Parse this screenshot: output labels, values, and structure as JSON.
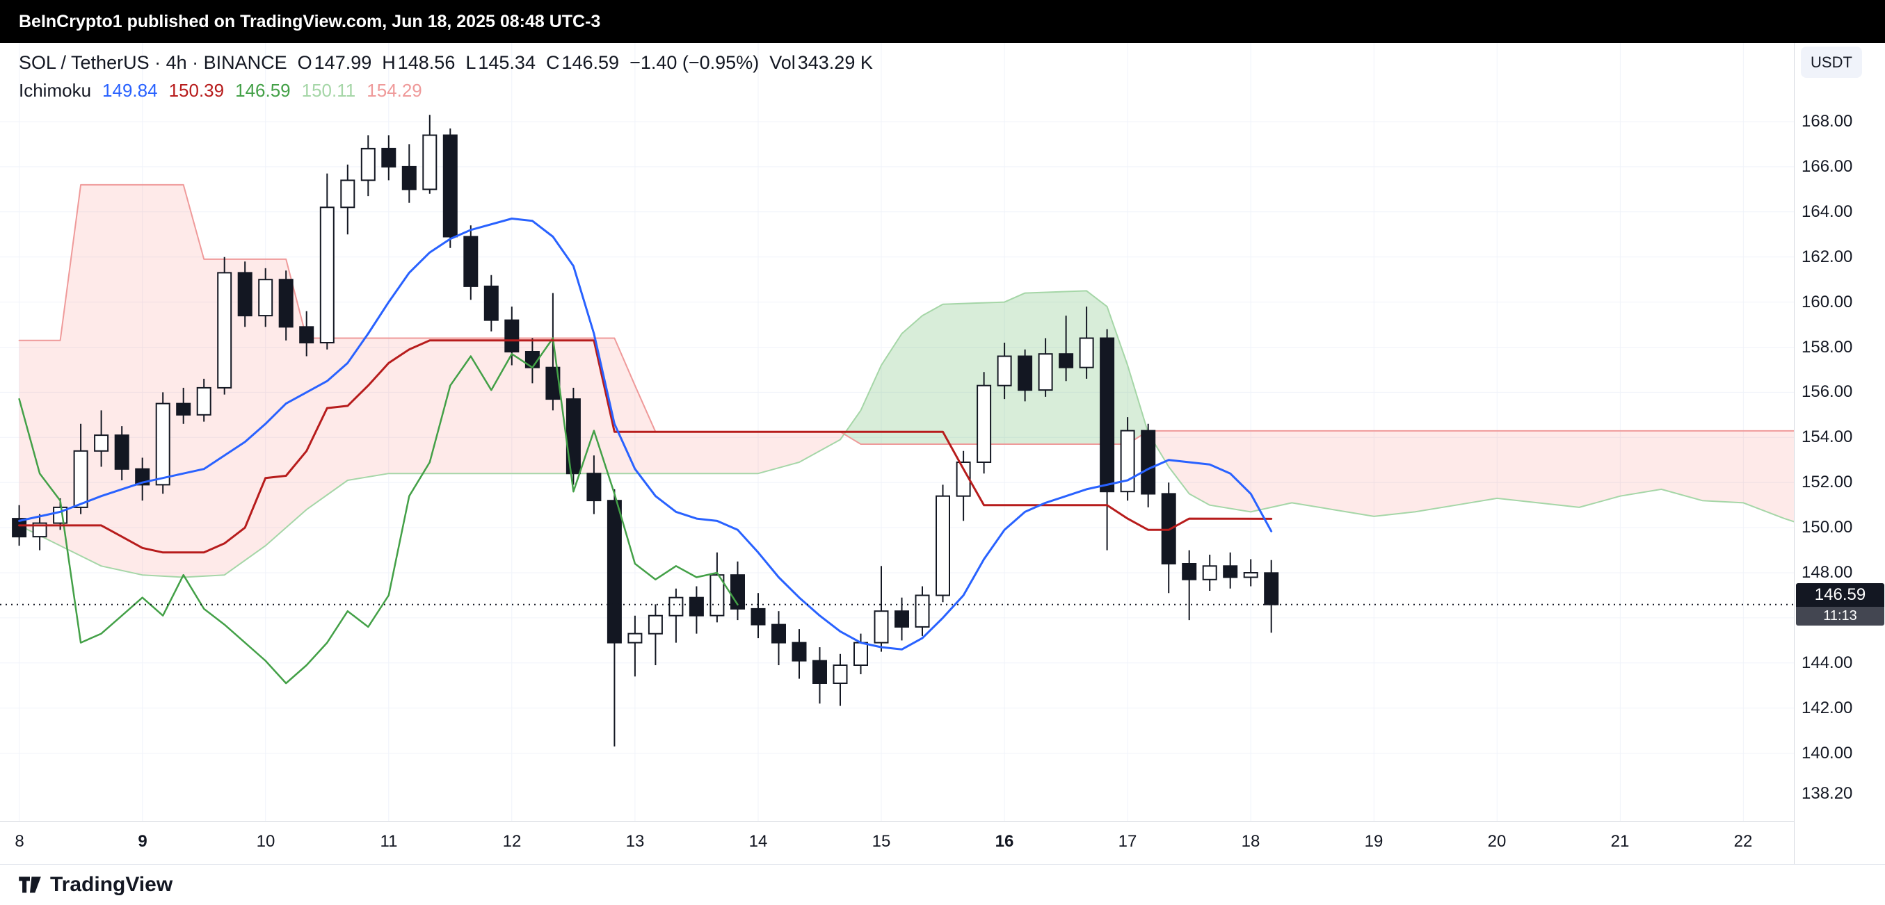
{
  "banner": {
    "text": "BeInCrypto1 published on TradingView.com, Jun 18, 2025 08:48 UTC-3"
  },
  "header": {
    "title": "SOL / TetherUS · 4h · BINANCE",
    "ohlc": [
      {
        "label": "O",
        "value": "147.99"
      },
      {
        "label": "H",
        "value": "148.56"
      },
      {
        "label": "L",
        "value": "145.34"
      },
      {
        "label": "C",
        "value": "146.59"
      }
    ],
    "change": "−1.40 (−0.95%)",
    "volume_label": "Vol",
    "volume_value": "343.29 K",
    "currency_button": "USDT"
  },
  "indicator": {
    "name": "Ichimoku",
    "values": [
      {
        "value": "149.84",
        "color": "#2962FF"
      },
      {
        "value": "150.39",
        "color": "#B71C1C"
      },
      {
        "value": "146.59",
        "color": "#43A047"
      },
      {
        "value": "150.11",
        "color": "#A5D6A7"
      },
      {
        "value": "154.29",
        "color": "#EF9A9A"
      }
    ]
  },
  "price_axis": {
    "labels": [
      {
        "text": "168.00",
        "price": 168.0
      },
      {
        "text": "166.00",
        "price": 166.0
      },
      {
        "text": "164.00",
        "price": 164.0
      },
      {
        "text": "162.00",
        "price": 162.0
      },
      {
        "text": "160.00",
        "price": 160.0
      },
      {
        "text": "158.00",
        "price": 158.0
      },
      {
        "text": "156.00",
        "price": 156.0
      },
      {
        "text": "154.00",
        "price": 154.0
      },
      {
        "text": "152.00",
        "price": 152.0
      },
      {
        "text": "150.00",
        "price": 150.0
      },
      {
        "text": "148.00",
        "price": 148.0
      },
      {
        "text": "144.00",
        "price": 144.0
      },
      {
        "text": "142.00",
        "price": 142.0
      },
      {
        "text": "140.00",
        "price": 140.0
      },
      {
        "text": "138.20",
        "price": 138.2
      }
    ]
  },
  "price_tag": {
    "price": "146.59",
    "countdown": "11:13"
  },
  "time_axis": {
    "labels": [
      {
        "text": "8",
        "i": 0,
        "bold": false
      },
      {
        "text": "9",
        "i": 6,
        "bold": true
      },
      {
        "text": "10",
        "i": 12,
        "bold": false
      },
      {
        "text": "11",
        "i": 18,
        "bold": false
      },
      {
        "text": "12",
        "i": 24,
        "bold": false
      },
      {
        "text": "13",
        "i": 30,
        "bold": false
      },
      {
        "text": "14",
        "i": 36,
        "bold": false
      },
      {
        "text": "15",
        "i": 42,
        "bold": false
      },
      {
        "text": "16",
        "i": 48,
        "bold": true
      },
      {
        "text": "17",
        "i": 54,
        "bold": false
      },
      {
        "text": "18",
        "i": 60,
        "bold": false
      },
      {
        "text": "19",
        "i": 66,
        "bold": false
      },
      {
        "text": "20",
        "i": 72,
        "bold": false
      },
      {
        "text": "21",
        "i": 78,
        "bold": false
      },
      {
        "text": "22",
        "i": 84,
        "bold": false
      }
    ]
  },
  "footer": {
    "brand": "TradingView"
  },
  "chart_data": {
    "type": "candlestick",
    "title": "SOL / TetherUS · 4h · BINANCE",
    "symbol": "SOL/USDT",
    "interval": "4h",
    "exchange": "BINANCE",
    "current_bar": {
      "open": 147.99,
      "high": 148.56,
      "low": 145.34,
      "close": 146.59,
      "change": -1.4,
      "change_pct": -0.95,
      "volume": "343.29 K"
    },
    "last_price": 146.59,
    "y_range": [
      137.0,
      171.5
    ],
    "y_ticks": [
      140,
      142,
      144,
      146,
      148,
      150,
      152,
      154,
      156,
      158,
      160,
      162,
      164,
      166,
      168
    ],
    "x_axis": {
      "tick_labels": [
        "8",
        "9",
        "10",
        "11",
        "12",
        "13",
        "14",
        "15",
        "16",
        "17",
        "18",
        "19",
        "20",
        "21",
        "22"
      ],
      "bold_ticks": [
        "9",
        "16"
      ],
      "candles_per_day": 6,
      "month": "Jun 2025"
    },
    "grid": {
      "horizontal": true,
      "vertical": true
    },
    "candles": [
      [
        150.4,
        151.0,
        149.2,
        149.6
      ],
      [
        149.6,
        150.6,
        149.0,
        150.2
      ],
      [
        150.2,
        151.3,
        149.9,
        150.9
      ],
      [
        150.9,
        154.6,
        150.6,
        153.4
      ],
      [
        153.4,
        155.2,
        152.7,
        154.1
      ],
      [
        154.1,
        154.5,
        152.1,
        152.6
      ],
      [
        152.6,
        153.1,
        151.2,
        151.9
      ],
      [
        151.9,
        156.0,
        151.5,
        155.5
      ],
      [
        155.5,
        156.2,
        154.6,
        155.0
      ],
      [
        155.0,
        156.6,
        154.7,
        156.2
      ],
      [
        156.2,
        162.0,
        155.9,
        161.3
      ],
      [
        161.3,
        161.8,
        158.9,
        159.4
      ],
      [
        159.4,
        161.5,
        158.9,
        161.0
      ],
      [
        161.0,
        161.4,
        158.3,
        158.9
      ],
      [
        158.9,
        159.6,
        157.6,
        158.2
      ],
      [
        158.2,
        165.7,
        157.9,
        164.2
      ],
      [
        164.2,
        166.1,
        163.0,
        165.4
      ],
      [
        165.4,
        167.4,
        164.7,
        166.8
      ],
      [
        166.8,
        167.4,
        165.4,
        166.0
      ],
      [
        166.0,
        167.0,
        164.4,
        165.0
      ],
      [
        165.0,
        168.3,
        164.8,
        167.4
      ],
      [
        167.4,
        167.7,
        162.4,
        162.9
      ],
      [
        162.9,
        163.4,
        160.1,
        160.7
      ],
      [
        160.7,
        161.2,
        158.7,
        159.2
      ],
      [
        159.2,
        159.8,
        157.2,
        157.8
      ],
      [
        157.8,
        158.4,
        156.4,
        157.1
      ],
      [
        157.1,
        160.4,
        155.2,
        155.7
      ],
      [
        155.7,
        156.2,
        151.9,
        152.4
      ],
      [
        152.4,
        153.2,
        150.6,
        151.2
      ],
      [
        151.2,
        151.7,
        140.3,
        144.9
      ],
      [
        144.9,
        146.1,
        143.4,
        145.3
      ],
      [
        145.3,
        146.6,
        143.9,
        146.1
      ],
      [
        146.1,
        147.3,
        144.9,
        146.9
      ],
      [
        146.9,
        147.4,
        145.3,
        146.1
      ],
      [
        146.1,
        148.9,
        145.8,
        147.9
      ],
      [
        147.9,
        148.5,
        145.9,
        146.4
      ],
      [
        146.4,
        147.1,
        145.1,
        145.7
      ],
      [
        145.7,
        146.3,
        143.9,
        144.9
      ],
      [
        144.9,
        145.5,
        143.3,
        144.1
      ],
      [
        144.1,
        144.7,
        142.2,
        143.1
      ],
      [
        143.1,
        144.4,
        142.1,
        143.9
      ],
      [
        143.9,
        145.3,
        143.5,
        144.9
      ],
      [
        144.9,
        148.3,
        144.5,
        146.3
      ],
      [
        146.3,
        146.9,
        145.0,
        145.6
      ],
      [
        145.6,
        147.4,
        145.2,
        147.0
      ],
      [
        147.0,
        151.9,
        146.7,
        151.4
      ],
      [
        151.4,
        153.4,
        150.3,
        152.9
      ],
      [
        152.9,
        156.9,
        152.4,
        156.3
      ],
      [
        156.3,
        158.2,
        155.7,
        157.6
      ],
      [
        157.6,
        157.9,
        155.6,
        156.1
      ],
      [
        156.1,
        158.4,
        155.8,
        157.7
      ],
      [
        157.7,
        159.4,
        156.5,
        157.1
      ],
      [
        157.1,
        159.8,
        156.6,
        158.4
      ],
      [
        158.4,
        158.8,
        149.0,
        151.6
      ],
      [
        151.6,
        154.9,
        151.2,
        154.3
      ],
      [
        154.3,
        154.6,
        150.9,
        151.5
      ],
      [
        151.5,
        152.0,
        147.1,
        148.4
      ],
      [
        148.4,
        149.0,
        145.9,
        147.7
      ],
      [
        147.7,
        148.8,
        147.2,
        148.3
      ],
      [
        148.3,
        148.9,
        147.3,
        147.8
      ],
      [
        147.8,
        148.6,
        147.4,
        148.0
      ],
      [
        147.99,
        148.56,
        145.34,
        146.59
      ]
    ],
    "ichimoku": {
      "legend_values": {
        "tenkan": 149.84,
        "kijun": 150.39,
        "chikou": 146.59,
        "senkou_a": 150.11,
        "senkou_b": 154.29
      },
      "chikou_shift": 26,
      "tenkan": [
        [
          0,
          150.3
        ],
        [
          2,
          150.7
        ],
        [
          4,
          151.4
        ],
        [
          6,
          152.0
        ],
        [
          8,
          152.4
        ],
        [
          9,
          152.6
        ],
        [
          10,
          153.2
        ],
        [
          11,
          153.8
        ],
        [
          12,
          154.6
        ],
        [
          13,
          155.5
        ],
        [
          14,
          156.0
        ],
        [
          15,
          156.5
        ],
        [
          16,
          157.3
        ],
        [
          17,
          158.6
        ],
        [
          18,
          160.0
        ],
        [
          19,
          161.3
        ],
        [
          20,
          162.2
        ],
        [
          21,
          162.8
        ],
        [
          22,
          163.2
        ],
        [
          24,
          163.7
        ],
        [
          25,
          163.6
        ],
        [
          26,
          162.9
        ],
        [
          27,
          161.6
        ],
        [
          28,
          158.6
        ],
        [
          29,
          154.6
        ],
        [
          30,
          152.6
        ],
        [
          31,
          151.4
        ],
        [
          32,
          150.7
        ],
        [
          33,
          150.4
        ],
        [
          34,
          150.3
        ],
        [
          35,
          149.9
        ],
        [
          36,
          148.9
        ],
        [
          37,
          147.8
        ],
        [
          38,
          146.9
        ],
        [
          39,
          146.1
        ],
        [
          40,
          145.4
        ],
        [
          41,
          144.9
        ],
        [
          42,
          144.7
        ],
        [
          43,
          144.6
        ],
        [
          44,
          145.1
        ],
        [
          45,
          146.0
        ],
        [
          46,
          147.0
        ],
        [
          47,
          148.6
        ],
        [
          48,
          149.9
        ],
        [
          49,
          150.7
        ],
        [
          50,
          151.1
        ],
        [
          51,
          151.4
        ],
        [
          52,
          151.7
        ],
        [
          53,
          151.9
        ],
        [
          54,
          152.1
        ],
        [
          55,
          152.6
        ],
        [
          56,
          153.0
        ],
        [
          57,
          152.9
        ],
        [
          58,
          152.8
        ],
        [
          59,
          152.4
        ],
        [
          60,
          151.5
        ],
        [
          61,
          149.84
        ]
      ],
      "kijun": [
        [
          0,
          150.1
        ],
        [
          4,
          150.1
        ],
        [
          5,
          149.6
        ],
        [
          6,
          149.1
        ],
        [
          7,
          148.9
        ],
        [
          9,
          148.9
        ],
        [
          10,
          149.3
        ],
        [
          11,
          150.0
        ],
        [
          12,
          152.2
        ],
        [
          13,
          152.3
        ],
        [
          14,
          153.4
        ],
        [
          15,
          155.3
        ],
        [
          16,
          155.4
        ],
        [
          17,
          156.3
        ],
        [
          18,
          157.3
        ],
        [
          19,
          157.9
        ],
        [
          20,
          158.3
        ],
        [
          28,
          158.3
        ],
        [
          29,
          154.25
        ],
        [
          45,
          154.25
        ],
        [
          46,
          152.6
        ],
        [
          47,
          151.0
        ],
        [
          53,
          151.0
        ],
        [
          54,
          150.4
        ],
        [
          55,
          149.9
        ],
        [
          56,
          149.9
        ],
        [
          57,
          150.4
        ],
        [
          61,
          150.39
        ]
      ],
      "senkou_a": [
        [
          0,
          150.1
        ],
        [
          2,
          149.2
        ],
        [
          4,
          148.3
        ],
        [
          6,
          147.9
        ],
        [
          8,
          147.8
        ],
        [
          10,
          147.9
        ],
        [
          12,
          149.2
        ],
        [
          14,
          150.8
        ],
        [
          16,
          152.1
        ],
        [
          18,
          152.4
        ],
        [
          36,
          152.4
        ],
        [
          38,
          152.9
        ],
        [
          40,
          153.9
        ],
        [
          41,
          155.2
        ],
        [
          42,
          157.2
        ],
        [
          43,
          158.6
        ],
        [
          44,
          159.4
        ],
        [
          45,
          159.9
        ],
        [
          48,
          160.0
        ],
        [
          49,
          160.4
        ],
        [
          52,
          160.5
        ],
        [
          53,
          159.8
        ],
        [
          54,
          157.2
        ],
        [
          55,
          154.2
        ],
        [
          56,
          152.7
        ],
        [
          57,
          151.5
        ],
        [
          58,
          151.0
        ],
        [
          60,
          150.7
        ],
        [
          62,
          151.1
        ],
        [
          64,
          150.8
        ],
        [
          66,
          150.5
        ],
        [
          68,
          150.7
        ],
        [
          70,
          151.0
        ],
        [
          72,
          151.3
        ],
        [
          74,
          151.1
        ],
        [
          76,
          150.9
        ],
        [
          78,
          151.4
        ],
        [
          80,
          151.7
        ],
        [
          82,
          151.2
        ],
        [
          84,
          151.1
        ],
        [
          86,
          150.4
        ],
        [
          87,
          150.11
        ]
      ],
      "senkou_b": [
        [
          0,
          158.3
        ],
        [
          2,
          158.3
        ],
        [
          3,
          165.2
        ],
        [
          8,
          165.2
        ],
        [
          9,
          161.9
        ],
        [
          13,
          161.9
        ],
        [
          14,
          158.4
        ],
        [
          29,
          158.4
        ],
        [
          30,
          156.3
        ],
        [
          31,
          154.25
        ],
        [
          40,
          154.25
        ],
        [
          41,
          153.7
        ],
        [
          54,
          153.7
        ],
        [
          55,
          154.29
        ],
        [
          87,
          154.29
        ]
      ]
    },
    "colors": {
      "up_fill": "#FFFFFF",
      "down_fill": "#131722",
      "outline": "#131722",
      "tenkan": "#2962FF",
      "kijun": "#B71C1C",
      "chikou": "#43A047",
      "senkou_a": "#A5D6A7",
      "senkou_b": "#EF9A9A",
      "cloud_bull": "rgba(76,175,80,0.22)",
      "cloud_bear": "rgba(244,67,54,0.11)",
      "grid": "#F0F3FA",
      "last_price_line": "#131722"
    }
  }
}
